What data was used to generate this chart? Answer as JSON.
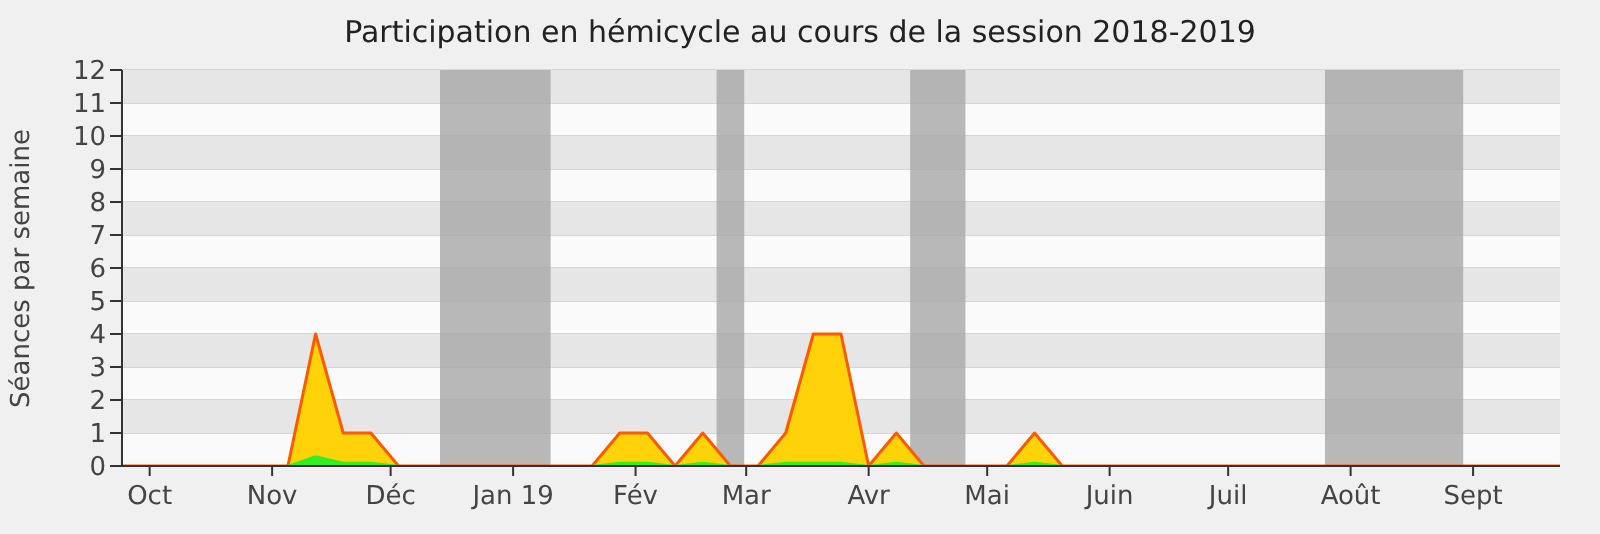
{
  "chart_data": {
    "type": "area",
    "title": "Participation en hémicycle au cours de la session 2018-2019",
    "ylabel": "Séances par semaine",
    "x": [
      "2018-09-24",
      "2018-10-01",
      "2018-10-08",
      "2018-10-15",
      "2018-10-22",
      "2018-10-29",
      "2018-11-05",
      "2018-11-12",
      "2018-11-19",
      "2018-11-26",
      "2018-12-03",
      "2018-12-10",
      "2018-12-17",
      "2018-12-24",
      "2018-12-31",
      "2019-01-07",
      "2019-01-14",
      "2019-01-21",
      "2019-01-28",
      "2019-02-04",
      "2019-02-11",
      "2019-02-18",
      "2019-02-25",
      "2019-03-04",
      "2019-03-11",
      "2019-03-18",
      "2019-03-25",
      "2019-04-01",
      "2019-04-08",
      "2019-04-15",
      "2019-04-22",
      "2019-04-29",
      "2019-05-06",
      "2019-05-13",
      "2019-05-20",
      "2019-05-27",
      "2019-06-03",
      "2019-06-10",
      "2019-06-17",
      "2019-06-24",
      "2019-07-01",
      "2019-07-08",
      "2019-07-15",
      "2019-07-22",
      "2019-07-29",
      "2019-08-05",
      "2019-08-12",
      "2019-08-19",
      "2019-08-26",
      "2019-09-02",
      "2019-09-09",
      "2019-09-16",
      "2019-09-23"
    ],
    "series": [
      {
        "color": "#ffd20a",
        "values": [
          0,
          0,
          0,
          0,
          0,
          0,
          0,
          4,
          1,
          1,
          0,
          0,
          0,
          0,
          0,
          0,
          0,
          0,
          1,
          1,
          0,
          1,
          0,
          0,
          1,
          4,
          4,
          0,
          1,
          0,
          0,
          0,
          0,
          1,
          0,
          0,
          0,
          0,
          0,
          0,
          0,
          0,
          0,
          0,
          0,
          0,
          0,
          0,
          0,
          0,
          0,
          0,
          0
        ]
      },
      {
        "color": "#33ee22",
        "values": [
          0,
          0,
          0,
          0,
          0,
          0,
          0,
          0.3,
          0.1,
          0.1,
          0,
          0,
          0,
          0,
          0,
          0,
          0,
          0,
          0.1,
          0.1,
          0,
          0.1,
          0,
          0,
          0.1,
          0.1,
          0.1,
          0,
          0.1,
          0,
          0,
          0,
          0,
          0.1,
          0,
          0,
          0,
          0,
          0,
          0,
          0,
          0,
          0,
          0,
          0,
          0,
          0,
          0,
          0,
          0,
          0,
          0,
          0
        ]
      }
    ],
    "xlim": [
      "2018-09-24",
      "2019-09-23"
    ],
    "xticks": [
      {
        "value": "2018-10-01",
        "label": "Oct"
      },
      {
        "value": "2018-11-01",
        "label": "Nov"
      },
      {
        "value": "2018-12-01",
        "label": "Déc"
      },
      {
        "value": "2019-01-01",
        "label": "Jan 19"
      },
      {
        "value": "2019-02-01",
        "label": "Fév"
      },
      {
        "value": "2019-03-01",
        "label": "Mar"
      },
      {
        "value": "2019-04-01",
        "label": "Avr"
      },
      {
        "value": "2019-05-01",
        "label": "Mai"
      },
      {
        "value": "2019-06-01",
        "label": "Juin"
      },
      {
        "value": "2019-07-01",
        "label": "Juil"
      },
      {
        "value": "2019-08-01",
        "label": "Août"
      },
      {
        "value": "2019-09-01",
        "label": "Sept"
      }
    ],
    "ylim": [
      0,
      12
    ],
    "yticks": [
      0,
      1,
      2,
      3,
      4,
      5,
      6,
      7,
      8,
      9,
      10,
      11,
      12
    ],
    "bands": [
      {
        "axis": "x",
        "from": "2018-12-13T12:00",
        "to": "2019-01-10T12:00",
        "color": "#a8a8a8"
      },
      {
        "axis": "x",
        "from": "2019-02-21T12:00",
        "to": "2019-02-28T12:00",
        "color": "#a8a8a8"
      },
      {
        "axis": "x",
        "from": "2019-04-11T12:00",
        "to": "2019-04-25T12:00",
        "color": "#a8a8a8"
      },
      {
        "axis": "x",
        "from": "2019-07-25T12:00",
        "to": "2019-08-29T12:00",
        "color": "#a8a8a8"
      }
    ],
    "grid": "y",
    "legend": false
  }
}
